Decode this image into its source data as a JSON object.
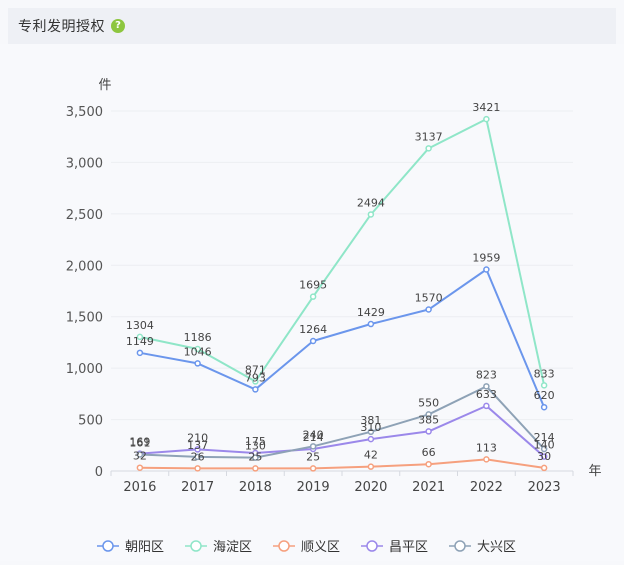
{
  "header": {
    "title": "专利发明授权",
    "help_glyph": "?"
  },
  "chart_data": {
    "type": "line",
    "ylabel": "件",
    "xlabel": "年",
    "ylim": [
      0,
      3500
    ],
    "yticks": [
      "0",
      "500",
      "1,000",
      "1,500",
      "2,000",
      "2,500",
      "3,000",
      "3,500"
    ],
    "ytick_values": [
      0,
      500,
      1000,
      1500,
      2000,
      2500,
      3000,
      3500
    ],
    "categories": [
      "2016",
      "2017",
      "2018",
      "2019",
      "2020",
      "2021",
      "2022",
      "2023"
    ],
    "legend_position": "bottom",
    "series": [
      {
        "name": "朝阳区",
        "color": "#6b96ec",
        "values": [
          1149,
          1046,
          793,
          1264,
          1429,
          1570,
          1959,
          620
        ]
      },
      {
        "name": "海淀区",
        "color": "#8fe6c8",
        "values": [
          1304,
          1186,
          871,
          1695,
          2494,
          3137,
          3421,
          833
        ]
      },
      {
        "name": "顺义区",
        "color": "#f6a07e",
        "values": [
          32,
          26,
          25,
          25,
          42,
          66,
          113,
          30
        ]
      },
      {
        "name": "昌平区",
        "color": "#9b88ea",
        "values": [
          169,
          210,
          175,
          214,
          310,
          385,
          633,
          140
        ]
      },
      {
        "name": "大兴区",
        "color": "#8ea2b6",
        "values": [
          161,
          137,
          130,
          240,
          381,
          550,
          823,
          214
        ]
      }
    ]
  }
}
